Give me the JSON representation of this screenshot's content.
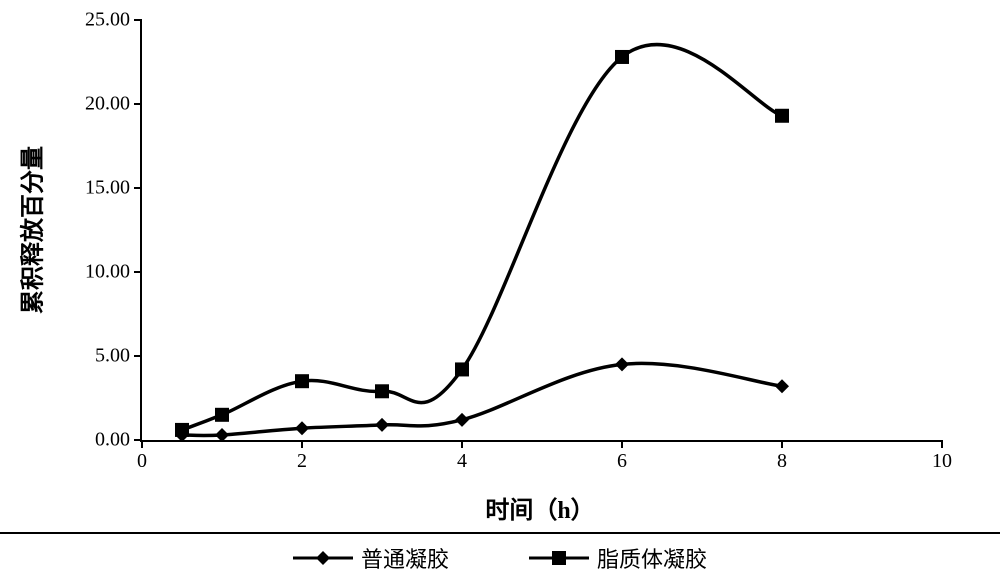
{
  "chart": {
    "type": "line",
    "background_color": "#ffffff",
    "axis_color": "#000000",
    "line_color": "#000000",
    "line_width": 3.5,
    "marker_size": 14,
    "xlim": [
      0,
      10
    ],
    "ylim": [
      0,
      25
    ],
    "xtick_step": 2,
    "ytick_step": 5,
    "x_ticks": [
      0,
      2,
      4,
      6,
      8,
      10
    ],
    "y_ticks": [
      {
        "v": 0,
        "label": "0.00"
      },
      {
        "v": 5,
        "label": "5.00"
      },
      {
        "v": 10,
        "label": "10.00"
      },
      {
        "v": 15,
        "label": "15.00"
      },
      {
        "v": 20,
        "label": "20.00"
      },
      {
        "v": 25,
        "label": "25.00"
      }
    ],
    "x_axis_title": "时间（h）",
    "y_axis_title": "累积释放百分量",
    "title_fontsize": 24,
    "tick_fontsize": 20,
    "legend_fontsize": 22,
    "series": [
      {
        "name": "普通凝胶",
        "marker": "diamond",
        "x": [
          0.5,
          1,
          2,
          3,
          4,
          6,
          8
        ],
        "y": [
          0.3,
          0.3,
          0.7,
          0.9,
          1.2,
          4.5,
          3.2
        ]
      },
      {
        "name": "脂质体凝胶",
        "marker": "square",
        "x": [
          0.5,
          1,
          2,
          3,
          4,
          6,
          8
        ],
        "y": [
          0.6,
          1.5,
          3.5,
          2.9,
          4.2,
          22.8,
          19.3
        ]
      }
    ]
  }
}
